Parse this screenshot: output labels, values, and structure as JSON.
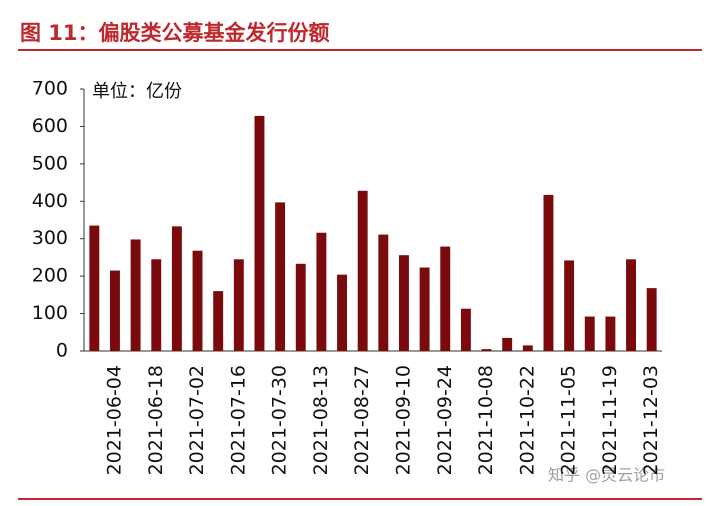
{
  "chart_data": {
    "type": "bar",
    "title": "图 11：偏股类公募基金发行份额",
    "unit_label": "单位：亿份",
    "watermark": "知乎 @灵云论市",
    "categories": [
      null,
      "2021-06-04",
      null,
      "2021-06-18",
      null,
      "2021-07-02",
      null,
      "2021-07-16",
      null,
      "2021-07-30",
      null,
      "2021-08-13",
      null,
      "2021-08-27",
      null,
      "2021-09-10",
      null,
      "2021-09-24",
      null,
      "2021-10-08",
      null,
      "2021-10-22",
      null,
      "2021-11-05",
      null,
      "2021-11-19",
      null,
      "2021-12-03"
    ],
    "values": [
      335,
      215,
      298,
      245,
      333,
      268,
      160,
      245,
      628,
      397,
      233,
      316,
      204,
      428,
      311,
      256,
      223,
      279,
      113,
      5,
      35,
      15,
      417,
      242,
      92,
      92,
      245,
      168
    ],
    "color": "#7a0a0c",
    "ylim": [
      0,
      700
    ],
    "yticks": [
      0,
      100,
      200,
      300,
      400,
      500,
      600,
      700
    ],
    "grid": false
  }
}
